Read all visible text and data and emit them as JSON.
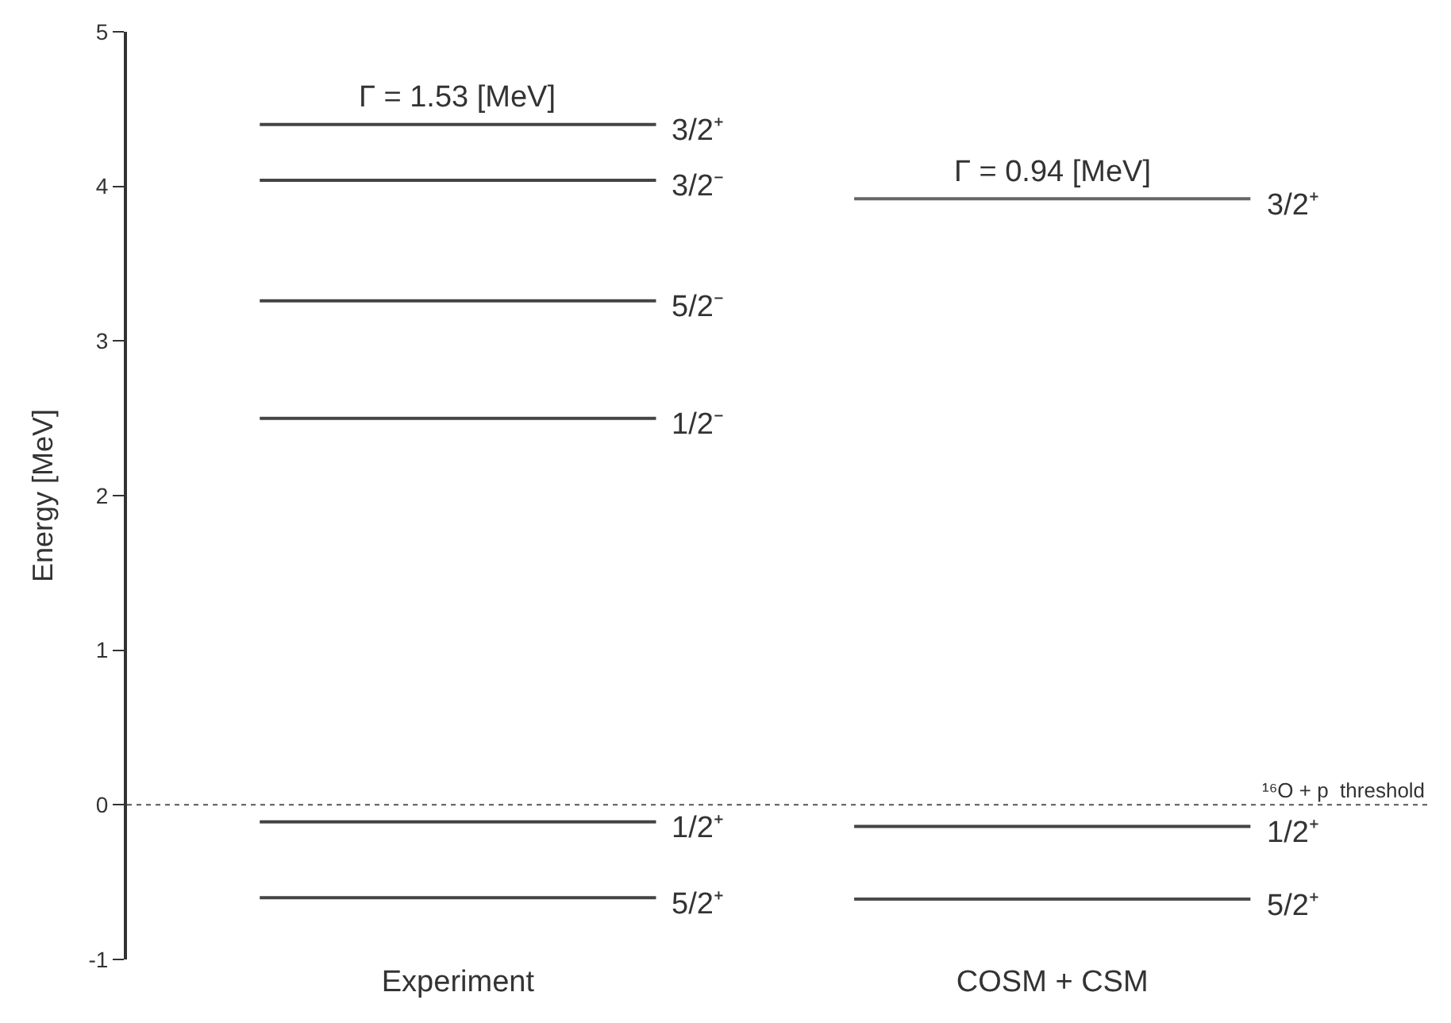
{
  "chart_data": {
    "type": "line",
    "ylabel": "Energy [MeV]",
    "categories": [
      null,
      "Experiment",
      null,
      null,
      "COSM + CSM",
      null
    ],
    "series": [
      {
        "name": "3/2⁺",
        "color": "#444444",
        "values": [
          4.4,
          4.4,
          4.4,
          null,
          null,
          null
        ]
      },
      {
        "name": "3/2⁻",
        "color": "#444444",
        "values": [
          4.04,
          4.04,
          4.04,
          null,
          null,
          null
        ]
      },
      {
        "name": "5/2⁻",
        "color": "#444444",
        "values": [
          3.26,
          3.26,
          3.26,
          null,
          null,
          null
        ]
      },
      {
        "name": "1/2⁻",
        "color": "#444444",
        "values": [
          2.5,
          2.5,
          2.5,
          null,
          null,
          null
        ]
      },
      {
        "name": "1/2⁺",
        "color": "#444444",
        "values": [
          -0.11,
          -0.11,
          -0.11,
          null,
          null,
          null
        ]
      },
      {
        "name": "5/2⁺",
        "color": "#444444",
        "values": [
          -0.6,
          -0.6,
          -0.6,
          null,
          null,
          null
        ]
      },
      {
        "name": "3/2⁺",
        "color": "#666666",
        "values": [
          null,
          null,
          null,
          3.92,
          3.92,
          3.92
        ]
      },
      {
        "name": "1/2⁺",
        "color": "#444444",
        "values": [
          null,
          null,
          null,
          -0.14,
          -0.14,
          -0.14
        ]
      },
      {
        "name": "5/2⁺",
        "color": "#4a4a4a",
        "values": [
          null,
          null,
          null,
          -0.61,
          -0.61,
          -0.61
        ]
      }
    ],
    "annotations": [
      {
        "text": "Γ = 1.53 [MeV]",
        "x": "Experiment",
        "y": 4.4
      },
      {
        "text": "Γ = 0.94 [MeV]",
        "x": "COSM + CSM",
        "y": 3.92
      }
    ],
    "ref_lines": [
      {
        "axis": "y",
        "value": 0,
        "label": "¹⁶O + p  threshold",
        "color": "#555555",
        "line_style": "dotted"
      }
    ],
    "ylim": [
      -1,
      5
    ],
    "yticks": [
      -1,
      0,
      1,
      2,
      3,
      4,
      5
    ],
    "grid": false,
    "legend": false,
    "marker": "none",
    "line_style": "solid"
  }
}
